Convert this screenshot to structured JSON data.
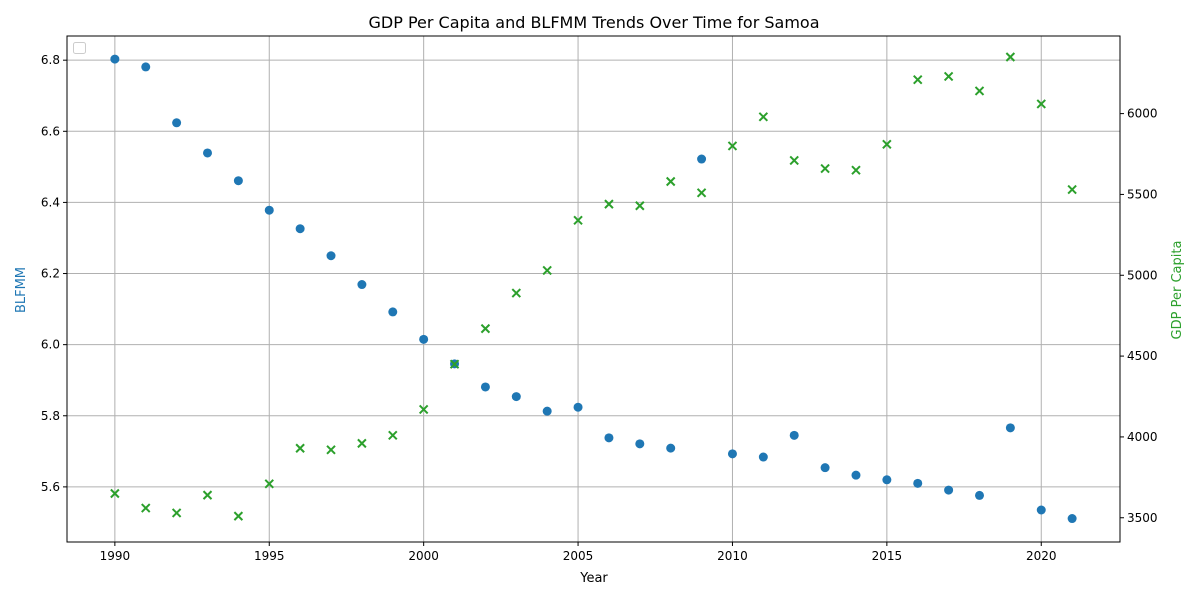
{
  "chart_data": {
    "type": "scatter",
    "title": "GDP Per Capita and BLFMM Trends Over Time for Samoa",
    "xlabel": "Year",
    "ylabel": "BLFMM",
    "ylabel_right": "GDP Per Capita",
    "xlim": [
      1988.45,
      2022.55
    ],
    "ylim": [
      5.445,
      6.868
    ],
    "ylim_right": [
      3350,
      6480
    ],
    "x_ticks": [
      1990,
      1995,
      2000,
      2005,
      2010,
      2015,
      2020
    ],
    "y_ticks": [
      5.6,
      5.8,
      6.0,
      6.2,
      6.4,
      6.6,
      6.8
    ],
    "y_ticks_right": [
      3500,
      4000,
      4500,
      5000,
      5500,
      6000
    ],
    "grid": true,
    "legend": "top-left (empty)",
    "colors": {
      "blfmm": "#1f77b4",
      "gdp": "#2ca02c"
    },
    "x": [
      1990,
      1991,
      1992,
      1993,
      1994,
      1995,
      1996,
      1997,
      1998,
      1999,
      2000,
      2001,
      2002,
      2003,
      2004,
      2005,
      2006,
      2007,
      2008,
      2009,
      2010,
      2011,
      2012,
      2013,
      2014,
      2015,
      2016,
      2017,
      2018,
      2019,
      2020,
      2021
    ],
    "series": [
      {
        "key": "blfmm",
        "axis": "left",
        "marker": "circle",
        "values": [
          6.803,
          6.781,
          6.624,
          6.539,
          6.461,
          6.378,
          6.326,
          6.25,
          6.169,
          6.092,
          6.015,
          5.946,
          5.881,
          5.854,
          5.813,
          5.824,
          5.738,
          5.721,
          5.709,
          6.522,
          5.693,
          5.684,
          5.745,
          5.654,
          5.633,
          5.62,
          5.61,
          5.591,
          5.576,
          5.766,
          5.535,
          5.511
        ]
      },
      {
        "key": "gdp",
        "axis": "right",
        "marker": "x",
        "values": [
          3650,
          3560,
          3530,
          3640,
          3510,
          3710,
          3930,
          3920,
          3960,
          4010,
          4170,
          4450,
          4670,
          4890,
          5030,
          5340,
          5440,
          5430,
          5580,
          5510,
          5800,
          5980,
          5710,
          5660,
          5650,
          5810,
          6210,
          6230,
          6140,
          6350,
          6060,
          5530
        ]
      }
    ]
  }
}
